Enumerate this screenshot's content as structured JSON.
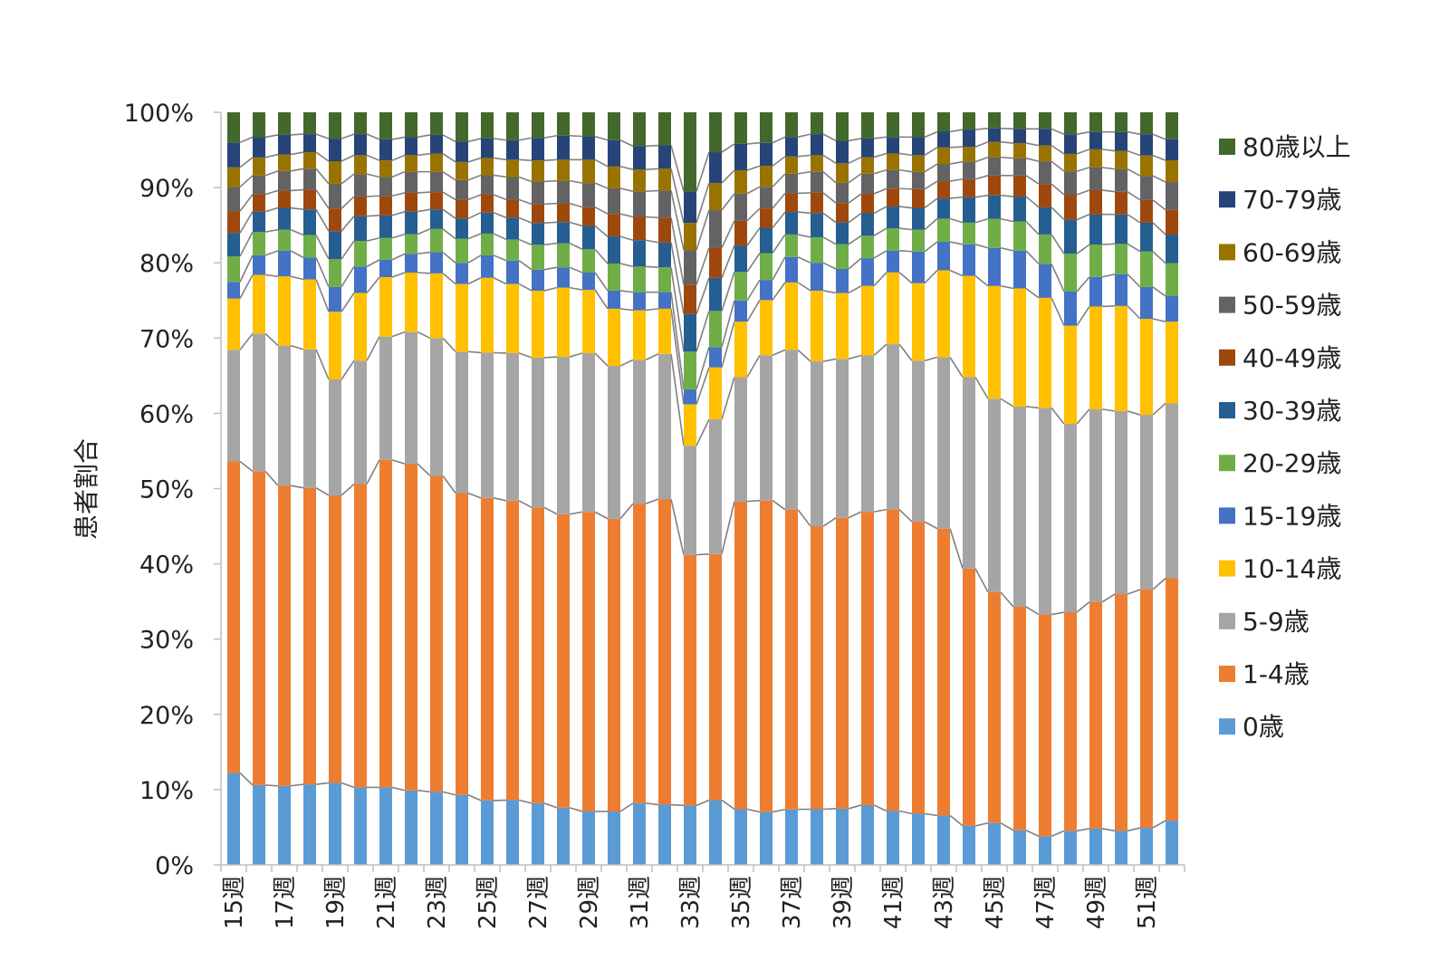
{
  "chart_data": {
    "type": "bar",
    "stacked": "percent",
    "title": "",
    "xlabel": "",
    "ylabel": "患者割合",
    "ylim": [
      0,
      100
    ],
    "yticks": [
      "0%",
      "10%",
      "20%",
      "30%",
      "40%",
      "50%",
      "60%",
      "70%",
      "80%",
      "90%",
      "100%"
    ],
    "grid": false,
    "legend_position": "right",
    "categories": [
      "15週",
      "16週",
      "17週",
      "18週",
      "19週",
      "20週",
      "21週",
      "22週",
      "23週",
      "24週",
      "25週",
      "26週",
      "27週",
      "28週",
      "29週",
      "30週",
      "31週",
      "32週",
      "33週",
      "34週",
      "35週",
      "36週",
      "37週",
      "38週",
      "39週",
      "40週",
      "41週",
      "42週",
      "43週",
      "44週",
      "45週",
      "46週",
      "47週",
      "48週",
      "49週",
      "50週",
      "51週",
      "52週"
    ],
    "tick_labels_shown": [
      "15週",
      "17週",
      "19週",
      "21週",
      "23週",
      "25週",
      "27週",
      "29週",
      "31週",
      "33週",
      "35週",
      "37週",
      "39週",
      "41週",
      "43週",
      "45週",
      "47週",
      "49週",
      "51週"
    ],
    "series": [
      {
        "name": "0歳",
        "color": "#5B9BD5",
        "values": [
          12.2,
          10.6,
          10.5,
          10.7,
          10.9,
          10.3,
          10.3,
          9.9,
          9.7,
          9.3,
          8.6,
          8.6,
          8.2,
          7.6,
          7.1,
          7.1,
          8.2,
          8.0,
          7.9,
          8.6,
          7.4,
          7.1,
          7.4,
          7.4,
          7.5,
          8.0,
          7.2,
          6.8,
          6.6,
          5.2,
          5.5,
          4.6,
          3.8,
          4.5,
          4.8,
          4.5,
          4.9,
          5.9
        ]
      },
      {
        "name": "1-4歳",
        "color": "#ED7D31",
        "values": [
          41.3,
          41.7,
          39.9,
          39.4,
          38.2,
          40.3,
          43.5,
          43.4,
          42.0,
          40.1,
          40.4,
          39.8,
          39.3,
          39.0,
          39.8,
          38.9,
          39.8,
          40.6,
          33.3,
          32.7,
          40.9,
          41.8,
          40.0,
          37.6,
          38.8,
          39.2,
          40.3,
          38.8,
          38.3,
          34.3,
          30.3,
          29.7,
          29.4,
          28.9,
          30.0,
          31.3,
          31.5,
          32.3
        ]
      },
      {
        "name": "5-9歳",
        "color": "#A5A5A5",
        "values": [
          14.8,
          18.3,
          18.6,
          18.4,
          15.4,
          16.4,
          16.4,
          17.5,
          18.3,
          18.8,
          19.4,
          19.6,
          19.9,
          20.9,
          21.1,
          20.3,
          19.1,
          19.3,
          14.5,
          17.9,
          16.5,
          19.5,
          21.3,
          21.9,
          21.2,
          20.9,
          22.1,
          21.4,
          22.9,
          25.5,
          25.4,
          26.6,
          27.4,
          24.9,
          25.5,
          24.2,
          23.1,
          23.3
        ]
      },
      {
        "name": "10-14歳",
        "color": "#FFC000",
        "values": [
          6.8,
          7.8,
          9.2,
          9.3,
          9.0,
          9.0,
          7.9,
          7.9,
          8.6,
          9.0,
          10.0,
          9.2,
          8.9,
          9.2,
          8.4,
          7.6,
          6.6,
          6.0,
          5.5,
          6.9,
          7.4,
          7.4,
          9.0,
          9.4,
          8.8,
          9.3,
          9.6,
          10.3,
          11.6,
          13.5,
          14.8,
          15.7,
          14.6,
          13.0,
          13.6,
          13.9,
          12.7,
          10.9
        ]
      },
      {
        "name": "15-19歳",
        "color": "#4472C4",
        "values": [
          2.2,
          2.6,
          3.4,
          2.9,
          3.3,
          3.5,
          2.3,
          2.5,
          2.8,
          2.8,
          3.0,
          3.1,
          2.8,
          2.7,
          2.3,
          2.4,
          2.4,
          2.2,
          2.0,
          2.7,
          2.8,
          2.7,
          3.4,
          3.7,
          3.2,
          3.7,
          2.9,
          4.2,
          3.8,
          4.2,
          5.0,
          5.0,
          4.5,
          4.5,
          3.9,
          4.2,
          4.2,
          3.4
        ]
      },
      {
        "name": "20-29歳",
        "color": "#70AD47",
        "values": [
          3.4,
          3.1,
          2.8,
          3.0,
          3.7,
          3.4,
          2.9,
          2.6,
          3.1,
          3.2,
          2.9,
          2.8,
          3.3,
          3.2,
          3.1,
          3.6,
          3.4,
          3.3,
          5.0,
          4.8,
          3.8,
          3.6,
          3.0,
          3.4,
          3.3,
          3.0,
          3.0,
          2.9,
          3.1,
          2.9,
          3.8,
          3.9,
          3.9,
          5.0,
          4.3,
          4.0,
          4.7,
          4.4
        ]
      },
      {
        "name": "30-39歳",
        "color": "#255E91",
        "values": [
          3.1,
          2.7,
          2.9,
          3.4,
          3.7,
          3.3,
          3.0,
          3.0,
          2.6,
          2.7,
          2.8,
          2.9,
          2.9,
          2.8,
          3.1,
          3.6,
          3.5,
          3.3,
          5.0,
          4.4,
          3.5,
          3.4,
          3.0,
          3.2,
          2.9,
          3.0,
          2.9,
          2.9,
          2.7,
          3.4,
          3.1,
          3.3,
          3.6,
          4.5,
          4.0,
          3.9,
          3.8,
          3.8
        ]
      },
      {
        "name": "40-49歳",
        "color": "#9E480E",
        "values": [
          2.9,
          2.3,
          2.3,
          2.6,
          3.0,
          2.6,
          2.6,
          2.5,
          2.3,
          2.5,
          2.4,
          2.4,
          2.5,
          2.5,
          2.5,
          3.0,
          3.1,
          3.3,
          3.9,
          4.0,
          3.3,
          2.6,
          2.5,
          2.7,
          2.6,
          2.6,
          2.4,
          2.5,
          2.3,
          2.4,
          2.6,
          2.8,
          3.1,
          3.3,
          3.2,
          3.0,
          3.0,
          3.3
        ]
      },
      {
        "name": "50-59歳",
        "color": "#636363",
        "values": [
          3.2,
          2.5,
          2.6,
          2.8,
          3.3,
          3.0,
          2.5,
          2.8,
          2.7,
          2.6,
          2.6,
          3.0,
          3.0,
          3.0,
          3.2,
          3.4,
          3.4,
          3.6,
          4.6,
          5.0,
          3.6,
          2.9,
          2.6,
          2.8,
          2.7,
          2.7,
          2.5,
          2.3,
          2.3,
          2.3,
          2.4,
          2.3,
          3.0,
          3.1,
          3.0,
          3.0,
          3.2,
          3.7
        ]
      },
      {
        "name": "60-69歳",
        "color": "#997300",
        "values": [
          2.6,
          2.4,
          2.2,
          2.2,
          3.0,
          2.5,
          2.2,
          2.2,
          2.4,
          2.4,
          2.3,
          2.3,
          2.8,
          2.8,
          3.1,
          2.9,
          2.9,
          2.9,
          3.6,
          3.6,
          3.1,
          2.8,
          2.3,
          2.2,
          2.6,
          2.2,
          2.2,
          2.2,
          2.2,
          2.0,
          2.0,
          2.0,
          2.1,
          2.3,
          2.4,
          2.4,
          2.7,
          2.9
        ]
      },
      {
        "name": "70-79歳",
        "color": "#264478",
        "values": [
          3.3,
          2.7,
          2.6,
          2.4,
          3.0,
          2.8,
          2.8,
          2.4,
          2.5,
          2.7,
          2.6,
          2.6,
          3.0,
          3.2,
          3.1,
          3.5,
          3.1,
          3.1,
          4.2,
          4.1,
          3.5,
          3.1,
          2.6,
          2.8,
          3.0,
          2.5,
          2.2,
          2.4,
          2.1,
          2.3,
          1.8,
          1.9,
          2.2,
          2.6,
          2.3,
          2.5,
          2.8,
          2.8
        ]
      },
      {
        "name": "80歳以上",
        "color": "#43682B",
        "values": [
          4.0,
          3.3,
          3.0,
          2.9,
          3.5,
          2.9,
          3.6,
          3.3,
          3.0,
          3.9,
          3.5,
          3.7,
          3.4,
          3.1,
          3.2,
          3.7,
          4.5,
          4.4,
          10.5,
          5.3,
          4.2,
          4.1,
          3.3,
          2.9,
          3.8,
          3.5,
          3.3,
          3.3,
          2.6,
          2.3,
          2.1,
          2.2,
          2.2,
          2.9,
          2.6,
          2.6,
          2.9,
          3.6
        ]
      }
    ]
  }
}
